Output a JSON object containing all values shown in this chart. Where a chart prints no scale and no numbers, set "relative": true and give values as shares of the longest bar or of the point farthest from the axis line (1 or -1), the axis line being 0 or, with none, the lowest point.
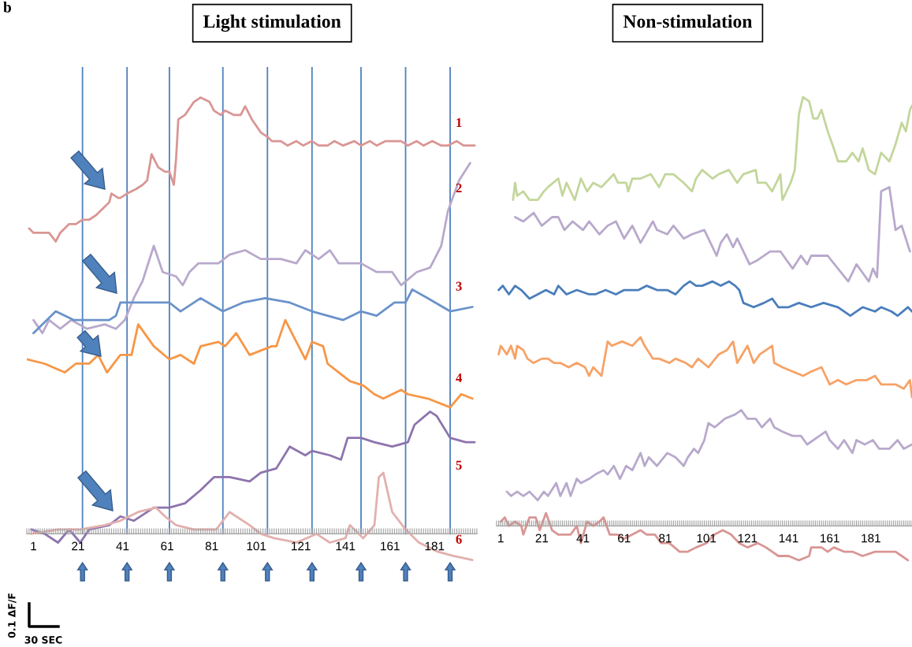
{
  "chart_data": [
    {
      "type": "line",
      "title": "Light stimulation",
      "relative": true,
      "xlim": [
        -2,
        200
      ],
      "xticks": [
        1,
        21,
        41,
        61,
        81,
        101,
        121,
        141,
        161,
        181
      ],
      "tick_labels": "x",
      "ref_lines": [
        {
          "axis": "x",
          "value": 23,
          "color": "#4f81bd"
        },
        {
          "axis": "x",
          "value": 43,
          "color": "#4f81bd"
        },
        {
          "axis": "x",
          "value": 62,
          "color": "#4f81bd"
        },
        {
          "axis": "x",
          "value": 86,
          "color": "#4f81bd"
        },
        {
          "axis": "x",
          "value": 106,
          "color": "#4f81bd"
        },
        {
          "axis": "x",
          "value": 126,
          "color": "#4f81bd"
        },
        {
          "axis": "x",
          "value": 148,
          "color": "#4f81bd"
        },
        {
          "axis": "x",
          "value": 168,
          "color": "#4f81bd"
        },
        {
          "axis": "x",
          "value": 188,
          "color": "#4f81bd"
        }
      ],
      "annotations": [
        "b",
        "0.1 ΔF/F",
        "30 SEC",
        "1",
        "2",
        "3",
        "4",
        "5",
        "6"
      ],
      "series": [
        {
          "color": "#d99694",
          "x": [
            -1,
            1,
            5,
            8,
            11,
            13,
            17,
            20,
            23,
            26,
            29,
            33,
            35,
            36,
            39,
            40,
            43,
            47,
            50,
            52,
            54,
            57,
            60,
            62,
            64,
            65,
            66,
            69,
            73,
            76,
            80,
            82,
            85,
            87,
            91,
            94,
            96,
            99,
            103,
            106,
            108,
            112,
            115,
            119,
            122,
            126,
            129,
            133,
            136,
            140,
            145,
            148,
            152,
            155,
            159,
            162,
            166,
            169,
            173,
            176,
            180,
            184,
            187,
            191,
            194,
            198,
            199
          ],
          "values": [
            0.7,
            0.69,
            0.69,
            0.69,
            0.67,
            0.69,
            0.71,
            0.71,
            0.72,
            0.72,
            0.73,
            0.75,
            0.76,
            0.78,
            0.77,
            0.77,
            0.78,
            0.79,
            0.8,
            0.81,
            0.87,
            0.84,
            0.83,
            0.83,
            0.8,
            0.86,
            0.95,
            0.96,
            0.99,
            1.0,
            0.99,
            0.97,
            0.96,
            0.97,
            0.96,
            0.96,
            0.98,
            0.95,
            0.92,
            0.91,
            0.9,
            0.9,
            0.89,
            0.9,
            0.89,
            0.9,
            0.89,
            0.89,
            0.9,
            0.89,
            0.9,
            0.89,
            0.9,
            0.89,
            0.9,
            0.9,
            0.9,
            0.89,
            0.9,
            0.89,
            0.9,
            0.89,
            0.89,
            0.9,
            0.89,
            0.89,
            0.89
          ]
        },
        {
          "color": "#b8a9cc",
          "x": [
            1,
            5,
            8,
            13,
            18,
            25,
            33,
            38,
            42,
            46,
            50,
            55,
            59,
            65,
            68,
            71,
            75,
            84,
            89,
            96,
            103,
            112,
            119,
            123,
            129,
            134,
            138,
            148,
            155,
            162,
            166,
            173,
            179,
            184,
            187,
            192,
            197
          ],
          "values": [
            0.49,
            0.46,
            0.49,
            0.47,
            0.49,
            0.47,
            0.48,
            0.47,
            0.49,
            0.54,
            0.58,
            0.66,
            0.6,
            0.59,
            0.57,
            0.6,
            0.62,
            0.62,
            0.64,
            0.65,
            0.63,
            0.63,
            0.62,
            0.65,
            0.63,
            0.65,
            0.62,
            0.62,
            0.6,
            0.6,
            0.57,
            0.6,
            0.61,
            0.66,
            0.74,
            0.81,
            0.85
          ]
        },
        {
          "color": "#6a92c9",
          "x": [
            1,
            11,
            19,
            26,
            35,
            38,
            40,
            49,
            58,
            62,
            67,
            76,
            86,
            95,
            105,
            116,
            126,
            133,
            140,
            148,
            155,
            163,
            168,
            171,
            178,
            188,
            198
          ],
          "values": [
            0.46,
            0.51,
            0.49,
            0.49,
            0.49,
            0.5,
            0.53,
            0.53,
            0.53,
            0.53,
            0.51,
            0.54,
            0.51,
            0.53,
            0.54,
            0.53,
            0.51,
            0.5,
            0.49,
            0.51,
            0.5,
            0.53,
            0.53,
            0.56,
            0.54,
            0.51,
            0.52
          ]
        },
        {
          "color": "#f79646",
          "x": [
            -2,
            6,
            15,
            20,
            26,
            30,
            34,
            40,
            45,
            48,
            55,
            62,
            67,
            73,
            76,
            84,
            87,
            92,
            98,
            103,
            108,
            110,
            114,
            119,
            123,
            126,
            131,
            133,
            138,
            143,
            149,
            154,
            158,
            162,
            166,
            169,
            178,
            188,
            193,
            198
          ],
          "values": [
            0.4,
            0.39,
            0.37,
            0.39,
            0.39,
            0.41,
            0.37,
            0.41,
            0.41,
            0.48,
            0.43,
            0.4,
            0.41,
            0.39,
            0.43,
            0.44,
            0.43,
            0.46,
            0.41,
            0.42,
            0.43,
            0.43,
            0.49,
            0.44,
            0.4,
            0.44,
            0.43,
            0.39,
            0.37,
            0.35,
            0.34,
            0.32,
            0.31,
            0.32,
            0.33,
            0.32,
            0.31,
            0.29,
            0.32,
            0.31
          ]
        },
        {
          "color": "#8d74ad",
          "x": [
            0,
            6,
            12,
            17,
            22,
            26,
            35,
            40,
            46,
            55,
            62,
            69,
            76,
            82,
            89,
            98,
            103,
            110,
            116,
            123,
            126,
            134,
            139,
            142,
            148,
            154,
            162,
            169,
            172,
            179,
            182,
            188,
            195,
            199
          ],
          "values": [
            0.01,
            0,
            -0.02,
            0.01,
            -0.02,
            0.01,
            0.02,
            0.04,
            0.03,
            0.06,
            0.06,
            0.07,
            0.1,
            0.13,
            0.13,
            0.12,
            0.14,
            0.15,
            0.2,
            0.18,
            0.19,
            0.18,
            0.17,
            0.22,
            0.22,
            0.21,
            0.2,
            0.21,
            0.25,
            0.28,
            0.27,
            0.22,
            0.21,
            0.21
          ]
        },
        {
          "color": "#e2b0ae",
          "x": [
            0,
            12,
            22,
            33,
            40,
            48,
            56,
            60,
            65,
            73,
            83,
            89,
            98,
            103,
            109,
            119,
            128,
            134,
            141,
            143,
            149,
            154,
            156,
            158,
            162,
            168,
            174,
            182,
            189,
            198
          ],
          "values": [
            0,
            0.01,
            0.01,
            0.02,
            0.03,
            0.05,
            0.06,
            0.04,
            0.02,
            0.01,
            0.01,
            0.05,
            0.02,
            0,
            -0.01,
            -0.02,
            0,
            -0.02,
            -0.01,
            0.02,
            -0.01,
            0.02,
            0.13,
            0.14,
            0.05,
            0.01,
            -0.02,
            -0.04,
            -0.05,
            -0.06
          ]
        }
      ]
    },
    {
      "type": "line",
      "title": "Non-stimulation",
      "relative": true,
      "xlim": [
        -1,
        201
      ],
      "xticks": [
        1,
        21,
        41,
        61,
        81,
        101,
        121,
        141,
        161,
        181
      ],
      "tick_labels": "x",
      "series": [
        {
          "color": "#c3d69b",
          "x": [
            7,
            8,
            9,
            12,
            15,
            19,
            22,
            24,
            29,
            31,
            33,
            37,
            40,
            43,
            46,
            50,
            54,
            56,
            58,
            62,
            63,
            65,
            69,
            74,
            78,
            81,
            85,
            90,
            94,
            96,
            99,
            104,
            107,
            112,
            116,
            119,
            125,
            126,
            130,
            133,
            137,
            138,
            142,
            144,
            146,
            148,
            151,
            153,
            155,
            157,
            160,
            163,
            165,
            169,
            172,
            175,
            177,
            180,
            183,
            186,
            190,
            193,
            196,
            198,
            200,
            201
          ],
          "values": [
            0.76,
            0.8,
            0.77,
            0.78,
            0.76,
            0.76,
            0.78,
            0.79,
            0.81,
            0.77,
            0.8,
            0.76,
            0.81,
            0.78,
            0.8,
            0.79,
            0.81,
            0.82,
            0.8,
            0.8,
            0.78,
            0.81,
            0.81,
            0.82,
            0.79,
            0.82,
            0.82,
            0.8,
            0.78,
            0.81,
            0.83,
            0.81,
            0.82,
            0.83,
            0.8,
            0.82,
            0.83,
            0.8,
            0.8,
            0.78,
            0.82,
            0.76,
            0.8,
            0.83,
            0.96,
            1.0,
            0.99,
            0.95,
            0.95,
            0.97,
            0.92,
            0.88,
            0.85,
            0.85,
            0.87,
            0.85,
            0.88,
            0.83,
            0.82,
            0.87,
            0.85,
            0.89,
            0.94,
            0.92,
            0.97,
            0.98
          ]
        },
        {
          "color": "#b8a9cc",
          "x": [
            8,
            12,
            17,
            21,
            26,
            29,
            32,
            36,
            41,
            44,
            49,
            53,
            57,
            61,
            65,
            69,
            75,
            77,
            82,
            85,
            90,
            94,
            100,
            102,
            106,
            108,
            111,
            114,
            116,
            122,
            126,
            132,
            137,
            140,
            143,
            147,
            150,
            152,
            156,
            160,
            165,
            170,
            174,
            177,
            180,
            182,
            184,
            186,
            190,
            193,
            196,
            200
          ],
          "values": [
            0.72,
            0.71,
            0.73,
            0.7,
            0.72,
            0.72,
            0.69,
            0.71,
            0.69,
            0.71,
            0.68,
            0.7,
            0.71,
            0.67,
            0.7,
            0.66,
            0.71,
            0.69,
            0.68,
            0.7,
            0.67,
            0.68,
            0.69,
            0.67,
            0.63,
            0.66,
            0.68,
            0.65,
            0.67,
            0.61,
            0.62,
            0.64,
            0.64,
            0.62,
            0.6,
            0.63,
            0.61,
            0.63,
            0.63,
            0.63,
            0.6,
            0.57,
            0.61,
            0.59,
            0.57,
            0.6,
            0.58,
            0.78,
            0.79,
            0.69,
            0.7,
            0.64
          ]
        },
        {
          "color": "#4a7ebb",
          "x": [
            0,
            2,
            5,
            8,
            11,
            15,
            19,
            23,
            27,
            29,
            33,
            38,
            44,
            47,
            52,
            57,
            61,
            68,
            72,
            77,
            82,
            86,
            90,
            93,
            96,
            99,
            104,
            108,
            112,
            115,
            117,
            119,
            124,
            129,
            133,
            136,
            141,
            146,
            152,
            158,
            165,
            171,
            177,
            183,
            186,
            191,
            194,
            199,
            201
          ],
          "values": [
            0.55,
            0.56,
            0.54,
            0.56,
            0.55,
            0.53,
            0.54,
            0.55,
            0.54,
            0.56,
            0.54,
            0.55,
            0.54,
            0.54,
            0.55,
            0.54,
            0.55,
            0.55,
            0.56,
            0.55,
            0.55,
            0.54,
            0.56,
            0.57,
            0.56,
            0.56,
            0.57,
            0.56,
            0.57,
            0.56,
            0.55,
            0.52,
            0.51,
            0.52,
            0.53,
            0.51,
            0.51,
            0.52,
            0.51,
            0.52,
            0.51,
            0.49,
            0.51,
            0.5,
            0.51,
            0.5,
            0.49,
            0.51,
            0.5
          ]
        },
        {
          "color": "#f7a266",
          "x": [
            0,
            1,
            4,
            6,
            8,
            9,
            12,
            14,
            17,
            21,
            24,
            27,
            30,
            34,
            38,
            42,
            44,
            46,
            50,
            53,
            55,
            60,
            65,
            69,
            71,
            75,
            78,
            83,
            86,
            91,
            94,
            97,
            102,
            107,
            111,
            114,
            116,
            121,
            124,
            127,
            133,
            134,
            138,
            143,
            148,
            152,
            157,
            161,
            165,
            169,
            174,
            179,
            183,
            186,
            190,
            193,
            197,
            200,
            201
          ],
          "values": [
            0.4,
            0.42,
            0.4,
            0.42,
            0.39,
            0.42,
            0.41,
            0.39,
            0.38,
            0.39,
            0.39,
            0.38,
            0.38,
            0.37,
            0.38,
            0.37,
            0.35,
            0.37,
            0.35,
            0.43,
            0.42,
            0.43,
            0.42,
            0.44,
            0.42,
            0.39,
            0.39,
            0.38,
            0.39,
            0.38,
            0.37,
            0.39,
            0.37,
            0.4,
            0.41,
            0.43,
            0.38,
            0.42,
            0.38,
            0.4,
            0.42,
            0.38,
            0.37,
            0.36,
            0.35,
            0.36,
            0.37,
            0.33,
            0.34,
            0.33,
            0.34,
            0.34,
            0.35,
            0.33,
            0.33,
            0.33,
            0.32,
            0.34,
            0.3
          ]
        },
        {
          "color": "#b8a9cc",
          "x": [
            4,
            6,
            9,
            12,
            15,
            19,
            22,
            24,
            28,
            30,
            33,
            35,
            38,
            40,
            44,
            47,
            51,
            53,
            56,
            59,
            62,
            65,
            69,
            71,
            73,
            77,
            82,
            86,
            90,
            92,
            95,
            97,
            100,
            102,
            105,
            110,
            115,
            118,
            121,
            125,
            128,
            132,
            134,
            138,
            143,
            147,
            150,
            156,
            159,
            161,
            165,
            168,
            172,
            174,
            178,
            182,
            185,
            190,
            194,
            197,
            201
          ],
          "values": [
            0.08,
            0.07,
            0.08,
            0.07,
            0.08,
            0.06,
            0.08,
            0.07,
            0.1,
            0.07,
            0.1,
            0.07,
            0.11,
            0.1,
            0.11,
            0.12,
            0.13,
            0.12,
            0.14,
            0.11,
            0.14,
            0.13,
            0.17,
            0.14,
            0.16,
            0.14,
            0.17,
            0.16,
            0.14,
            0.16,
            0.18,
            0.17,
            0.2,
            0.24,
            0.23,
            0.25,
            0.26,
            0.27,
            0.25,
            0.25,
            0.23,
            0.25,
            0.23,
            0.22,
            0.21,
            0.21,
            0.19,
            0.21,
            0.22,
            0.2,
            0.18,
            0.2,
            0.17,
            0.2,
            0.19,
            0.2,
            0.18,
            0.18,
            0.2,
            0.18,
            0.19
          ]
        },
        {
          "color": "#d99694",
          "x": [
            1,
            3,
            5,
            8,
            11,
            12,
            15,
            18,
            20,
            23,
            26,
            29,
            32,
            35,
            38,
            40,
            43,
            46,
            49,
            51,
            54,
            58,
            61,
            65,
            69,
            72,
            76,
            79,
            83,
            88,
            92,
            96,
            101,
            105,
            109,
            113,
            117,
            121,
            126,
            130,
            136,
            141,
            146,
            151,
            152,
            157,
            160,
            163,
            168,
            172,
            177,
            183,
            190,
            193,
            196,
            199
          ],
          "values": [
            0.01,
            0.02,
            0.0,
            0.01,
            0.0,
            -0.02,
            0.02,
            0.02,
            -0.01,
            0.03,
            -0.01,
            -0.02,
            -0.02,
            -0.02,
            0.0,
            -0.04,
            0.01,
            0.0,
            0.01,
            0.02,
            -0.02,
            -0.02,
            -0.03,
            -0.02,
            -0.01,
            -0.02,
            -0.02,
            -0.04,
            -0.04,
            -0.06,
            -0.06,
            -0.05,
            -0.04,
            -0.02,
            -0.01,
            -0.02,
            -0.04,
            -0.05,
            -0.04,
            -0.05,
            -0.07,
            -0.07,
            -0.08,
            -0.07,
            -0.05,
            -0.05,
            -0.06,
            -0.05,
            -0.06,
            -0.06,
            -0.07,
            -0.06,
            -0.06,
            -0.06,
            -0.07,
            -0.08
          ]
        }
      ]
    }
  ]
}
